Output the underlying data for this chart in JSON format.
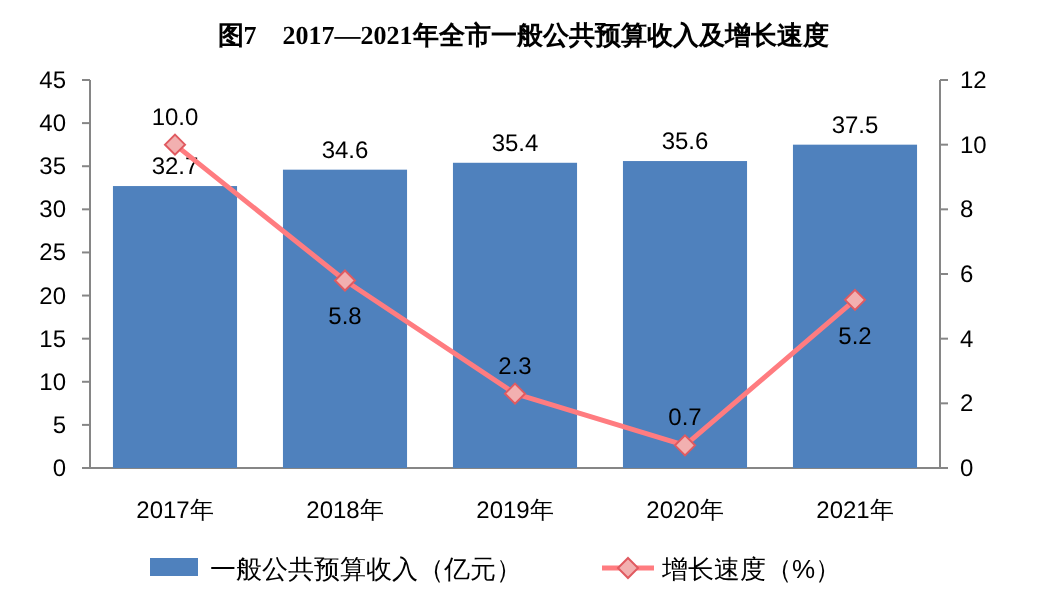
{
  "chart_data": {
    "type": "bar",
    "title": "图7　2017—2021年全市一般公共预算收入及增长速度",
    "categories": [
      "2017年",
      "2018年",
      "2019年",
      "2020年",
      "2021年"
    ],
    "series": [
      {
        "name": "一般公共预算收入（亿元）",
        "color": "#4f81bd",
        "values": [
          32.7,
          34.6,
          35.4,
          35.6,
          37.5
        ],
        "value_labels": [
          "32.7",
          "34.6",
          "35.4",
          "35.6",
          "37.5"
        ]
      },
      {
        "name": "增长速度（%）",
        "type": "line",
        "axis": "y2",
        "color": "#ff7c80",
        "marker": "diamond",
        "values": [
          10.0,
          5.8,
          2.3,
          0.7,
          5.2
        ],
        "value_labels": [
          "10.0",
          "5.8",
          "2.3",
          "0.7",
          "5.2"
        ]
      }
    ],
    "ylim": [
      0,
      45
    ],
    "yticks": [
      0,
      5,
      10,
      15,
      20,
      25,
      30,
      35,
      40,
      45
    ],
    "y2lim": [
      0,
      12
    ],
    "y2ticks": [
      0,
      2,
      4,
      6,
      8,
      10,
      12
    ],
    "legend": "bottom"
  }
}
